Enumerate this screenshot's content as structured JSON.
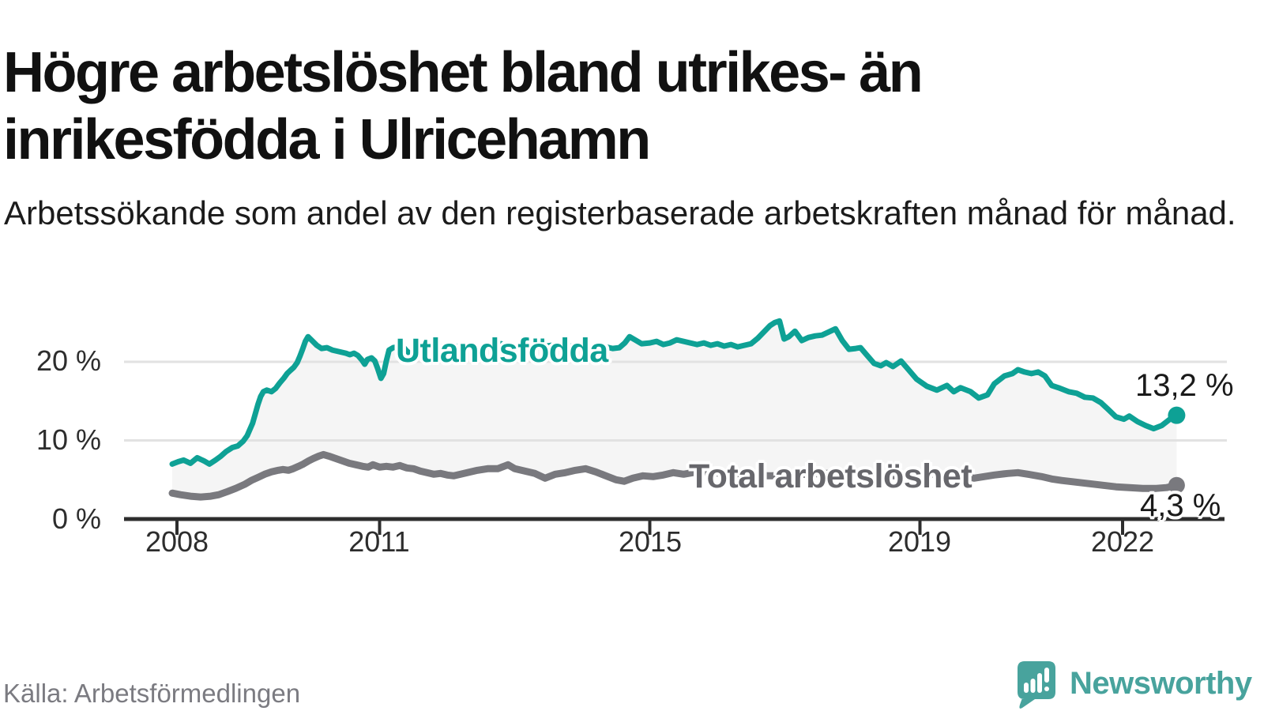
{
  "header": {
    "title": "Högre arbetslöshet bland utrikes- än inrikesfödda i Ulricehamn",
    "subtitle": "Arbetssökande som andel av den registerbaserade arbetskraften månad för månad."
  },
  "footer": {
    "source": "Källa: Arbetsförmedlingen",
    "brand": "Newsworthy"
  },
  "colors": {
    "series1": "#0ea195",
    "series2": "#79797e",
    "fill": "#f5f5f5",
    "grid": "#e2e2e2",
    "axis": "#2d2d2d",
    "brand": "#48a39d"
  },
  "chart_data": {
    "type": "line",
    "title": "Högre arbetslöshet bland utrikes- än inrikesfödda i Ulricehamn",
    "xlabel": "",
    "ylabel": "",
    "xlim": [
      2007.9,
      2023.2
    ],
    "ylim": [
      0,
      27
    ],
    "grid": "horizontal",
    "x_ticks": [
      2008,
      2011,
      2015,
      2019,
      2022
    ],
    "x_tick_labels": [
      "2008",
      "2011",
      "2015",
      "2019",
      "2022"
    ],
    "y_ticks": [
      0,
      10,
      20
    ],
    "y_tick_labels": [
      "0 %",
      "10 %",
      "20 %"
    ],
    "series": [
      {
        "name": "Utlandsfödda",
        "color": "#0ea195",
        "end_label": "13,2 %",
        "end_value": 13.2,
        "points": [
          [
            2007.93,
            7.0
          ],
          [
            2008.02,
            7.3
          ],
          [
            2008.1,
            7.5
          ],
          [
            2008.2,
            7.1
          ],
          [
            2008.3,
            7.8
          ],
          [
            2008.4,
            7.4
          ],
          [
            2008.48,
            7.0
          ],
          [
            2008.57,
            7.5
          ],
          [
            2008.65,
            8.0
          ],
          [
            2008.73,
            8.6
          ],
          [
            2008.82,
            9.1
          ],
          [
            2008.9,
            9.3
          ],
          [
            2008.98,
            9.9
          ],
          [
            2009.04,
            10.6
          ],
          [
            2009.08,
            11.4
          ],
          [
            2009.12,
            12.2
          ],
          [
            2009.16,
            13.4
          ],
          [
            2009.2,
            14.6
          ],
          [
            2009.24,
            15.6
          ],
          [
            2009.28,
            16.2
          ],
          [
            2009.33,
            16.4
          ],
          [
            2009.4,
            16.2
          ],
          [
            2009.46,
            16.6
          ],
          [
            2009.52,
            17.3
          ],
          [
            2009.58,
            17.9
          ],
          [
            2009.63,
            18.5
          ],
          [
            2009.68,
            18.9
          ],
          [
            2009.73,
            19.3
          ],
          [
            2009.78,
            19.9
          ],
          [
            2009.82,
            20.7
          ],
          [
            2009.86,
            21.6
          ],
          [
            2009.9,
            22.6
          ],
          [
            2009.94,
            23.2
          ],
          [
            2010.0,
            22.7
          ],
          [
            2010.07,
            22.1
          ],
          [
            2010.14,
            21.7
          ],
          [
            2010.22,
            21.8
          ],
          [
            2010.3,
            21.5
          ],
          [
            2010.4,
            21.3
          ],
          [
            2010.5,
            21.1
          ],
          [
            2010.56,
            20.9
          ],
          [
            2010.62,
            21.1
          ],
          [
            2010.68,
            20.8
          ],
          [
            2010.74,
            20.2
          ],
          [
            2010.78,
            19.7
          ],
          [
            2010.82,
            20.3
          ],
          [
            2010.88,
            20.5
          ],
          [
            2010.93,
            20.1
          ],
          [
            2010.97,
            19.2
          ],
          [
            2011.02,
            17.9
          ],
          [
            2011.06,
            18.5
          ],
          [
            2011.1,
            20.1
          ],
          [
            2011.14,
            21.5
          ],
          [
            2011.2,
            21.8
          ],
          [
            2011.27,
            21.9
          ],
          [
            2011.34,
            22.0
          ],
          [
            2011.4,
            21.4
          ],
          [
            2011.47,
            20.9
          ],
          [
            2011.55,
            21.3
          ],
          [
            2011.65,
            21.6
          ],
          [
            2011.75,
            21.9
          ],
          [
            2011.85,
            21.7
          ],
          [
            2011.95,
            22.0
          ],
          [
            2012.05,
            22.2
          ],
          [
            2012.2,
            21.8
          ],
          [
            2012.35,
            22.0
          ],
          [
            2012.5,
            21.6
          ],
          [
            2012.65,
            21.9
          ],
          [
            2012.8,
            22.3
          ],
          [
            2012.95,
            21.9
          ],
          [
            2013.1,
            22.1
          ],
          [
            2013.25,
            21.7
          ],
          [
            2013.4,
            21.9
          ],
          [
            2013.55,
            22.1
          ],
          [
            2013.7,
            21.8
          ],
          [
            2013.85,
            22.0
          ],
          [
            2014.0,
            22.1
          ],
          [
            2014.15,
            21.8
          ],
          [
            2014.3,
            22.0
          ],
          [
            2014.45,
            21.7
          ],
          [
            2014.55,
            21.8
          ],
          [
            2014.63,
            22.4
          ],
          [
            2014.7,
            23.2
          ],
          [
            2014.78,
            22.8
          ],
          [
            2014.88,
            22.3
          ],
          [
            2015.0,
            22.4
          ],
          [
            2015.1,
            22.6
          ],
          [
            2015.2,
            22.2
          ],
          [
            2015.3,
            22.4
          ],
          [
            2015.4,
            22.8
          ],
          [
            2015.5,
            22.6
          ],
          [
            2015.6,
            22.4
          ],
          [
            2015.7,
            22.2
          ],
          [
            2015.8,
            22.4
          ],
          [
            2015.9,
            22.1
          ],
          [
            2016.0,
            22.3
          ],
          [
            2016.1,
            22.0
          ],
          [
            2016.2,
            22.2
          ],
          [
            2016.3,
            21.9
          ],
          [
            2016.4,
            22.1
          ],
          [
            2016.5,
            22.3
          ],
          [
            2016.6,
            23.0
          ],
          [
            2016.7,
            23.9
          ],
          [
            2016.78,
            24.6
          ],
          [
            2016.85,
            25.0
          ],
          [
            2016.92,
            25.2
          ],
          [
            2016.99,
            22.9
          ],
          [
            2017.06,
            23.2
          ],
          [
            2017.15,
            23.9
          ],
          [
            2017.25,
            22.7
          ],
          [
            2017.35,
            23.1
          ],
          [
            2017.45,
            23.3
          ],
          [
            2017.55,
            23.4
          ],
          [
            2017.65,
            23.8
          ],
          [
            2017.75,
            24.2
          ],
          [
            2017.85,
            22.7
          ],
          [
            2017.95,
            21.6
          ],
          [
            2018.05,
            21.7
          ],
          [
            2018.12,
            21.8
          ],
          [
            2018.2,
            21.0
          ],
          [
            2018.32,
            19.8
          ],
          [
            2018.42,
            19.5
          ],
          [
            2018.5,
            19.9
          ],
          [
            2018.6,
            19.4
          ],
          [
            2018.72,
            20.1
          ],
          [
            2018.84,
            18.9
          ],
          [
            2018.95,
            17.8
          ],
          [
            2019.1,
            16.9
          ],
          [
            2019.25,
            16.4
          ],
          [
            2019.4,
            17.0
          ],
          [
            2019.5,
            16.2
          ],
          [
            2019.6,
            16.7
          ],
          [
            2019.75,
            16.2
          ],
          [
            2019.87,
            15.4
          ],
          [
            2020.0,
            15.8
          ],
          [
            2020.1,
            17.2
          ],
          [
            2020.25,
            18.2
          ],
          [
            2020.37,
            18.5
          ],
          [
            2020.45,
            19.0
          ],
          [
            2020.55,
            18.7
          ],
          [
            2020.65,
            18.5
          ],
          [
            2020.75,
            18.7
          ],
          [
            2020.85,
            18.2
          ],
          [
            2020.95,
            17.0
          ],
          [
            2021.05,
            16.7
          ],
          [
            2021.2,
            16.2
          ],
          [
            2021.32,
            16.0
          ],
          [
            2021.44,
            15.5
          ],
          [
            2021.56,
            15.4
          ],
          [
            2021.68,
            14.8
          ],
          [
            2021.78,
            14.0
          ],
          [
            2021.9,
            13.0
          ],
          [
            2022.02,
            12.7
          ],
          [
            2022.1,
            13.1
          ],
          [
            2022.22,
            12.4
          ],
          [
            2022.34,
            11.9
          ],
          [
            2022.46,
            11.5
          ],
          [
            2022.58,
            11.9
          ],
          [
            2022.7,
            12.7
          ],
          [
            2022.8,
            13.2
          ]
        ]
      },
      {
        "name": "Total arbetslöshet",
        "color": "#79797e",
        "end_label": "4,3 %",
        "end_value": 4.3,
        "points": [
          [
            2007.93,
            3.3
          ],
          [
            2008.05,
            3.1
          ],
          [
            2008.2,
            2.9
          ],
          [
            2008.35,
            2.8
          ],
          [
            2008.5,
            2.9
          ],
          [
            2008.62,
            3.1
          ],
          [
            2008.75,
            3.5
          ],
          [
            2008.87,
            3.9
          ],
          [
            2009.0,
            4.4
          ],
          [
            2009.1,
            4.9
          ],
          [
            2009.2,
            5.3
          ],
          [
            2009.3,
            5.7
          ],
          [
            2009.4,
            6.0
          ],
          [
            2009.5,
            6.2
          ],
          [
            2009.57,
            6.3
          ],
          [
            2009.65,
            6.2
          ],
          [
            2009.72,
            6.4
          ],
          [
            2009.8,
            6.7
          ],
          [
            2009.87,
            7.0
          ],
          [
            2009.95,
            7.4
          ],
          [
            2010.02,
            7.7
          ],
          [
            2010.1,
            8.0
          ],
          [
            2010.17,
            8.2
          ],
          [
            2010.25,
            8.0
          ],
          [
            2010.35,
            7.7
          ],
          [
            2010.45,
            7.4
          ],
          [
            2010.55,
            7.1
          ],
          [
            2010.65,
            6.9
          ],
          [
            2010.75,
            6.7
          ],
          [
            2010.83,
            6.6
          ],
          [
            2010.9,
            6.9
          ],
          [
            2011.0,
            6.6
          ],
          [
            2011.1,
            6.7
          ],
          [
            2011.2,
            6.6
          ],
          [
            2011.3,
            6.8
          ],
          [
            2011.4,
            6.5
          ],
          [
            2011.5,
            6.4
          ],
          [
            2011.6,
            6.1
          ],
          [
            2011.7,
            5.9
          ],
          [
            2011.8,
            5.7
          ],
          [
            2011.9,
            5.8
          ],
          [
            2012.0,
            5.6
          ],
          [
            2012.1,
            5.5
          ],
          [
            2012.2,
            5.7
          ],
          [
            2012.3,
            5.9
          ],
          [
            2012.45,
            6.2
          ],
          [
            2012.6,
            6.4
          ],
          [
            2012.75,
            6.4
          ],
          [
            2012.9,
            6.9
          ],
          [
            2013.0,
            6.4
          ],
          [
            2013.15,
            6.1
          ],
          [
            2013.3,
            5.8
          ],
          [
            2013.45,
            5.2
          ],
          [
            2013.6,
            5.7
          ],
          [
            2013.75,
            5.9
          ],
          [
            2013.9,
            6.2
          ],
          [
            2014.05,
            6.4
          ],
          [
            2014.2,
            6.0
          ],
          [
            2014.35,
            5.5
          ],
          [
            2014.5,
            5.0
          ],
          [
            2014.62,
            4.8
          ],
          [
            2014.75,
            5.2
          ],
          [
            2014.9,
            5.5
          ],
          [
            2015.05,
            5.4
          ],
          [
            2015.2,
            5.6
          ],
          [
            2015.35,
            5.9
          ],
          [
            2015.5,
            5.7
          ],
          [
            2015.7,
            6.0
          ],
          [
            2015.9,
            5.9
          ],
          [
            2016.1,
            5.8
          ],
          [
            2016.3,
            5.7
          ],
          [
            2016.5,
            5.6
          ],
          [
            2016.75,
            5.5
          ],
          [
            2017.0,
            5.5
          ],
          [
            2017.3,
            5.7
          ],
          [
            2017.6,
            5.8
          ],
          [
            2018.0,
            5.9
          ],
          [
            2018.2,
            5.8
          ],
          [
            2018.4,
            5.7
          ],
          [
            2018.6,
            5.5
          ],
          [
            2018.8,
            5.5
          ],
          [
            2019.0,
            5.6
          ],
          [
            2019.2,
            5.7
          ],
          [
            2019.4,
            5.5
          ],
          [
            2019.6,
            5.3
          ],
          [
            2019.8,
            5.2
          ],
          [
            2019.95,
            5.4
          ],
          [
            2020.1,
            5.6
          ],
          [
            2020.3,
            5.8
          ],
          [
            2020.45,
            5.9
          ],
          [
            2020.6,
            5.7
          ],
          [
            2020.8,
            5.4
          ],
          [
            2020.95,
            5.1
          ],
          [
            2021.1,
            4.9
          ],
          [
            2021.3,
            4.7
          ],
          [
            2021.5,
            4.5
          ],
          [
            2021.7,
            4.3
          ],
          [
            2021.9,
            4.1
          ],
          [
            2022.1,
            4.0
          ],
          [
            2022.3,
            3.9
          ],
          [
            2022.5,
            3.9
          ],
          [
            2022.65,
            4.0
          ],
          [
            2022.8,
            4.3
          ]
        ]
      }
    ]
  }
}
